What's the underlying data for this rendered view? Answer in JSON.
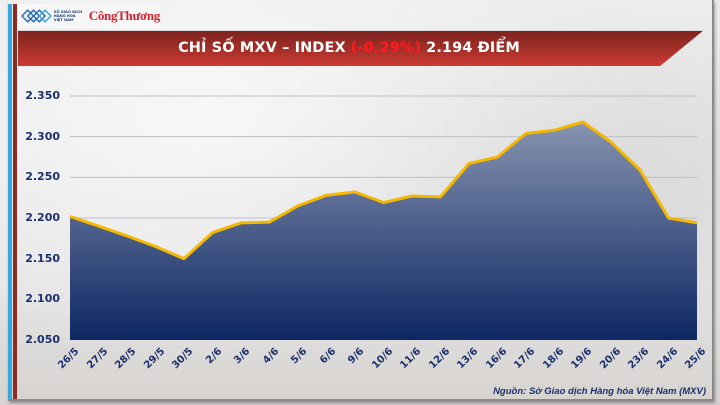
{
  "header": {
    "logo_mxv_lines": [
      "SỞ GIAO DỊCH",
      "HÀNG HÓA",
      "VIỆT NAM"
    ],
    "logo_congthuong": "CôngThương",
    "title_prefix": "CHỈ SỐ MXV – INDEX",
    "title_change": "(-0,29%)",
    "title_value": "2.194 ĐIỂM",
    "change_color": "#ff1a1a"
  },
  "source": "Nguồn: Sở Giao dịch Hàng hóa Việt Nam (MXV)",
  "colors": {
    "line": "#f5b800",
    "area_top": "#8794b0",
    "area_bottom": "#0d2763",
    "axis_text": "#1a2f6b",
    "title_bar": "#a32e28"
  },
  "chart_data": {
    "type": "area",
    "title": "CHỈ SỐ MXV – INDEX (-0,29%) 2.194 ĐIỂM",
    "xlabel": "",
    "ylabel": "",
    "categories": [
      "26/5",
      "27/5",
      "28/5",
      "29/5",
      "30/5",
      "2/6",
      "3/6",
      "4/6",
      "5/6",
      "6/6",
      "9/6",
      "10/6",
      "11/6",
      "12/6",
      "13/6",
      "16/6",
      "17/6",
      "18/6",
      "19/6",
      "20/6",
      "23/6",
      "24/6",
      "25/6"
    ],
    "series": [
      {
        "name": "MXV-Index",
        "values": [
          2202,
          2190,
          2178,
          2165,
          2150,
          2182,
          2194,
          2195,
          2215,
          2228,
          2232,
          2219,
          2227,
          2226,
          2267,
          2275,
          2304,
          2308,
          2318,
          2293,
          2259,
          2200,
          2194
        ]
      }
    ],
    "yticks": [
      "2.050",
      "2.100",
      "2.150",
      "2.200",
      "2.250",
      "2.300",
      "2.350"
    ],
    "ylim": [
      2050,
      2350
    ],
    "grid": true,
    "legend": "none"
  }
}
